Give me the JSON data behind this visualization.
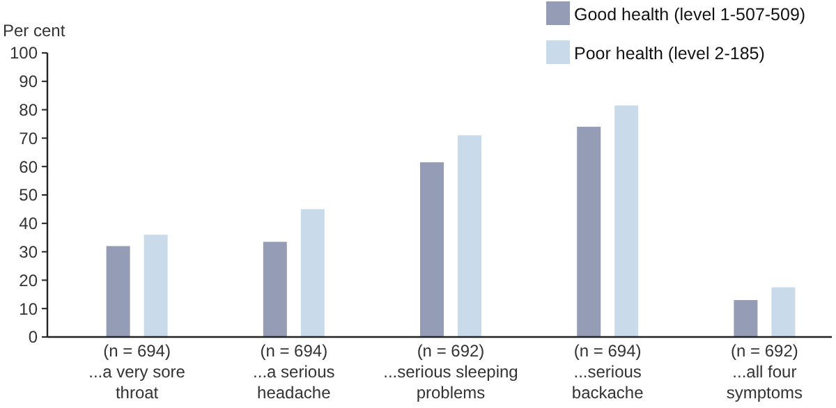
{
  "chart_data": {
    "type": "bar",
    "ylabel": "Per cent",
    "categories": [
      "(n = 694)\n...a very sore\nthroat",
      "(n = 694)\n...a serious\nheadache",
      "(n = 692)\n...serious sleeping\nproblems",
      "(n = 694)\n...serious\nbackache",
      "(n = 692)\n...all four\nsymptoms"
    ],
    "series": [
      {
        "name": "Good health (level 1-507-509)",
        "color": "#959db6",
        "values": [
          32,
          33.5,
          61.5,
          74,
          13
        ]
      },
      {
        "name": "Poor health (level 2-185)",
        "color": "#c9dbeb",
        "values": [
          36,
          45,
          71,
          81.5,
          17.5
        ]
      }
    ],
    "ylim": [
      0,
      100
    ],
    "yticks": [
      0,
      10,
      20,
      30,
      40,
      50,
      60,
      70,
      80,
      90,
      100
    ],
    "legend": "top right"
  }
}
